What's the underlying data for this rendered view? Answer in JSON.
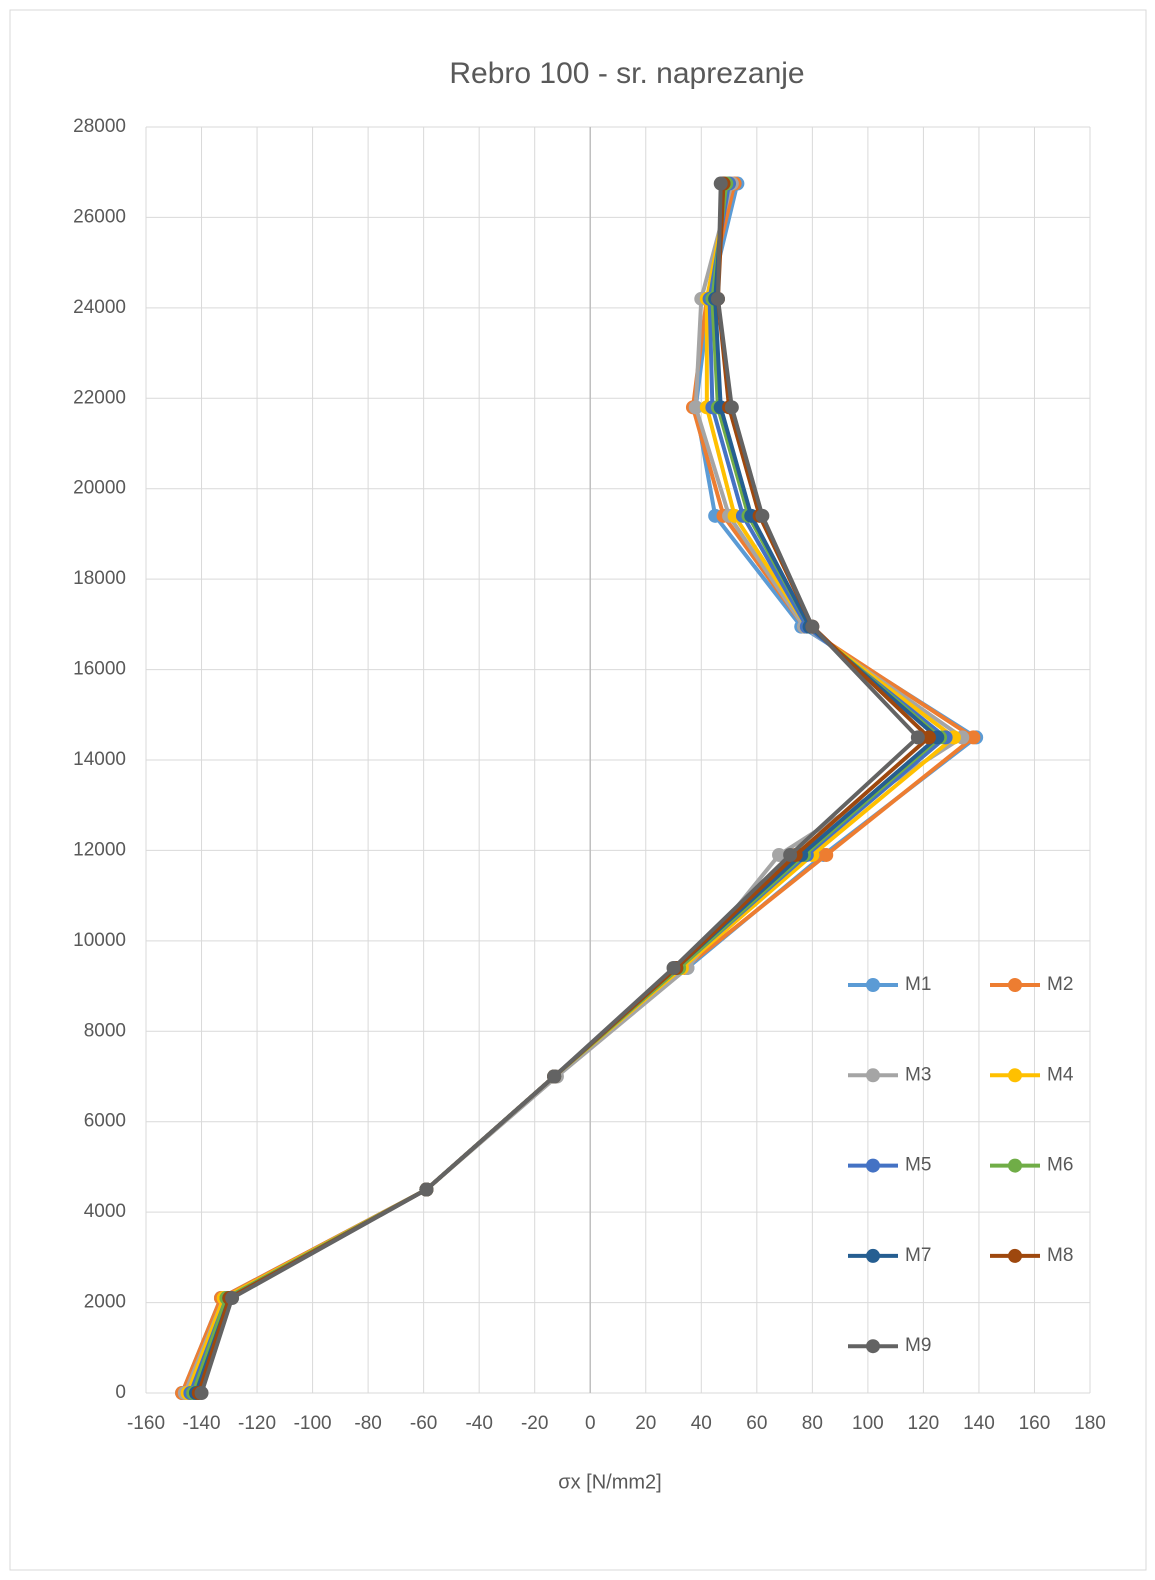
{
  "chart_data": {
    "type": "line-scatter",
    "title": "Rebro 100 - sr. naprezanje",
    "x_label": "σx [N/mm2]",
    "y": [
      0,
      2100,
      4500,
      7000,
      9400,
      11900,
      14500,
      16950,
      19400,
      21800,
      24200,
      26750
    ],
    "series": [
      {
        "name": "M1",
        "color": "#5b9bd5",
        "x": [
          -147,
          -133,
          -59,
          -13,
          35,
          84,
          139,
          76,
          45,
          38,
          43,
          53
        ]
      },
      {
        "name": "M2",
        "color": "#ed7d31",
        "x": [
          -147,
          -133,
          -59,
          -13,
          34,
          85,
          138,
          77,
          48,
          37,
          42,
          52
        ]
      },
      {
        "name": "M3",
        "color": "#a5a5a5",
        "x": [
          -146,
          -132,
          -59,
          -12,
          35,
          68,
          134,
          77,
          50,
          38,
          40,
          51
        ]
      },
      {
        "name": "M4",
        "color": "#ffc000",
        "x": [
          -145,
          -132,
          -59,
          -13,
          33,
          80,
          131,
          78,
          52,
          42,
          42,
          50
        ]
      },
      {
        "name": "M5",
        "color": "#4472c4",
        "x": [
          -144,
          -131,
          -59,
          -13,
          32,
          78,
          128,
          78,
          55,
          44,
          43,
          50
        ]
      },
      {
        "name": "M6",
        "color": "#70ad47",
        "x": [
          -143,
          -131,
          -59,
          -13,
          32,
          77,
          126,
          79,
          57,
          46,
          44,
          49
        ]
      },
      {
        "name": "M7",
        "color": "#255e91",
        "x": [
          -142,
          -130,
          -59,
          -13,
          31,
          76,
          125,
          79,
          58,
          47,
          45,
          48
        ]
      },
      {
        "name": "M8",
        "color": "#9e480e",
        "x": [
          -141,
          -130,
          -59,
          -13,
          31,
          74,
          122,
          80,
          61,
          50,
          46,
          48
        ]
      },
      {
        "name": "M9",
        "color": "#636363",
        "x": [
          -140,
          -129,
          -59,
          -13,
          30,
          72,
          118,
          80,
          62,
          51,
          46,
          47
        ]
      }
    ],
    "xlim": [
      -160,
      180
    ],
    "xticks": [
      -160,
      -140,
      -120,
      -100,
      -80,
      -60,
      -40,
      -20,
      0,
      20,
      40,
      60,
      80,
      100,
      120,
      140,
      160,
      180
    ],
    "ylim": [
      0,
      28000
    ],
    "yticks": [
      0,
      2000,
      4000,
      6000,
      8000,
      10000,
      12000,
      14000,
      16000,
      18000,
      20000,
      22000,
      24000,
      26000,
      28000
    ],
    "grid": true,
    "legend": "right"
  }
}
